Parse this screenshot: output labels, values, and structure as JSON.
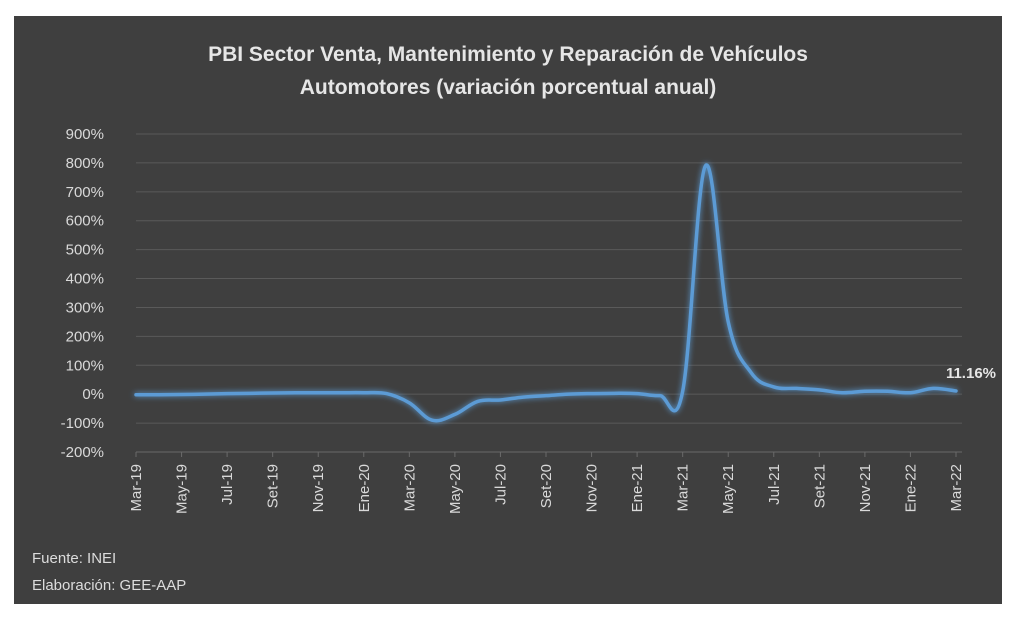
{
  "chart_data": {
    "type": "line",
    "title": [
      "PBI Sector Venta, Mantenimiento y Reparación de Vehículos",
      "Automotores (variación porcentual anual)"
    ],
    "xlabel": "",
    "ylabel": "",
    "ylim": [
      -200,
      900
    ],
    "y_ticks": [
      -200,
      -100,
      0,
      100,
      200,
      300,
      400,
      500,
      600,
      700,
      800,
      900
    ],
    "y_tick_labels": [
      "-200%",
      "-100%",
      "0%",
      "100%",
      "200%",
      "300%",
      "400%",
      "500%",
      "600%",
      "700%",
      "800%",
      "900%"
    ],
    "categories": [
      "Mar-19",
      "Abr-19",
      "May-19",
      "Jun-19",
      "Jul-19",
      "Ago-19",
      "Set-19",
      "Oct-19",
      "Nov-19",
      "Dic-19",
      "Ene-20",
      "Feb-20",
      "Mar-20",
      "Abr-20",
      "May-20",
      "Jun-20",
      "Jul-20",
      "Ago-20",
      "Set-20",
      "Oct-20",
      "Nov-20",
      "Dic-20",
      "Ene-21",
      "Feb-21",
      "Mar-21",
      "Abr-21",
      "May-21",
      "Jun-21",
      "Jul-21",
      "Ago-21",
      "Set-21",
      "Oct-21",
      "Nov-21",
      "Dic-21",
      "Ene-22",
      "Feb-22",
      "Mar-22"
    ],
    "x_tick_labels": [
      "Mar-19",
      "May-19",
      "Jul-19",
      "Set-19",
      "Nov-19",
      "Ene-20",
      "Mar-20",
      "May-20",
      "Jul-20",
      "Set-20",
      "Nov-20",
      "Ene-21",
      "Mar-21",
      "May-21",
      "Jul-21",
      "Set-21",
      "Nov-21",
      "Ene-22",
      "Mar-22"
    ],
    "series": [
      {
        "values": [
          -2,
          -2,
          -1,
          0,
          2,
          3,
          4,
          5,
          5,
          5,
          5,
          2,
          -30,
          -90,
          -70,
          -25,
          -20,
          -10,
          -5,
          0,
          2,
          3,
          2,
          -5,
          10,
          790,
          250,
          75,
          25,
          20,
          15,
          5,
          10,
          10,
          5,
          20,
          11.16
        ],
        "color": "#5b9bd5"
      }
    ],
    "annotations": [
      {
        "text": "11.16%",
        "category": "Mar-22",
        "value": 11.16
      }
    ],
    "grid": true,
    "legend": "none"
  },
  "footer": {
    "source": "Fuente: INEI",
    "credit": "Elaboración: GEE-AAP"
  }
}
